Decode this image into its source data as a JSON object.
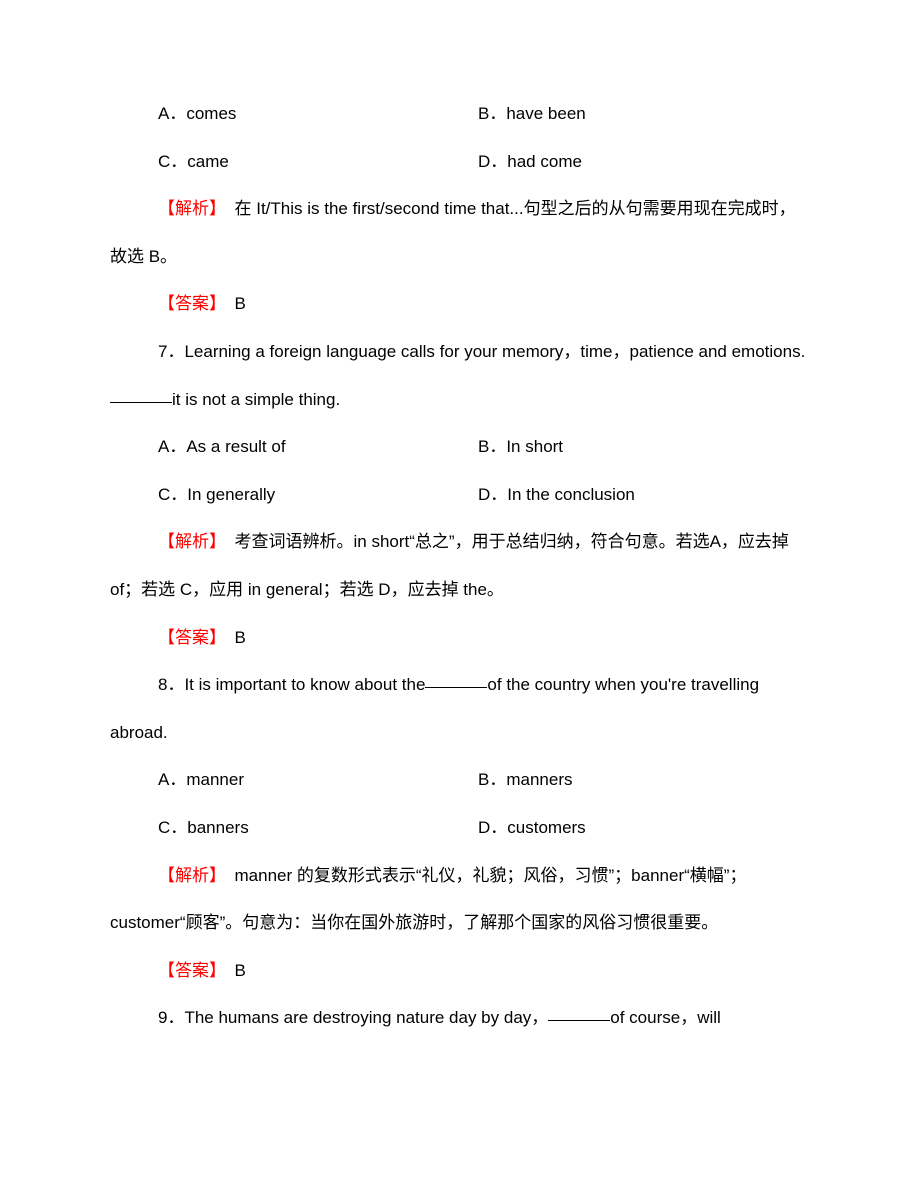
{
  "q6": {
    "options": {
      "a": "A．comes",
      "b": "B．have been",
      "c": "C．came",
      "d": "D．had come"
    },
    "analysis_label": "【解析】",
    "analysis_text": "　在 It/This is the first/second time that...句型之后的从句需要用现在完成时，故选 B。",
    "answer_label": "【答案】",
    "answer_text": "　B"
  },
  "q7": {
    "stem_pre": "7．Learning a foreign language calls for your memory，time，patience and emotions.",
    "stem_post": "it is not a simple thing.",
    "options": {
      "a": "A．As a result of",
      "b": "B．In short",
      "c": "C．In generally",
      "d": "D．In the conclusion"
    },
    "analysis_label": "【解析】",
    "analysis_text": "　考查词语辨析。in short“总之”，用于总结归纳，符合句意。若选A，应去掉 of；若选 C，应用 in general；若选 D，应去掉 the。",
    "answer_label": "【答案】",
    "answer_text": "　B"
  },
  "q8": {
    "stem_pre": "8．It is important to know about the",
    "stem_post": "of the country when you're travelling abroad.",
    "options": {
      "a": "A．manner",
      "b": "B．manners",
      "c": "C．banners",
      "d": "D．customers"
    },
    "analysis_label": "【解析】",
    "analysis_text": "　manner 的复数形式表示“礼仪，礼貌；风俗，习惯”；banner“横幅”；customer“顾客”。句意为：当你在国外旅游时，了解那个国家的风俗习惯很重要。",
    "answer_label": "【答案】",
    "answer_text": "　B"
  },
  "q9": {
    "stem_pre": "9．The humans are destroying nature day by day，",
    "stem_post": "of course，will"
  }
}
